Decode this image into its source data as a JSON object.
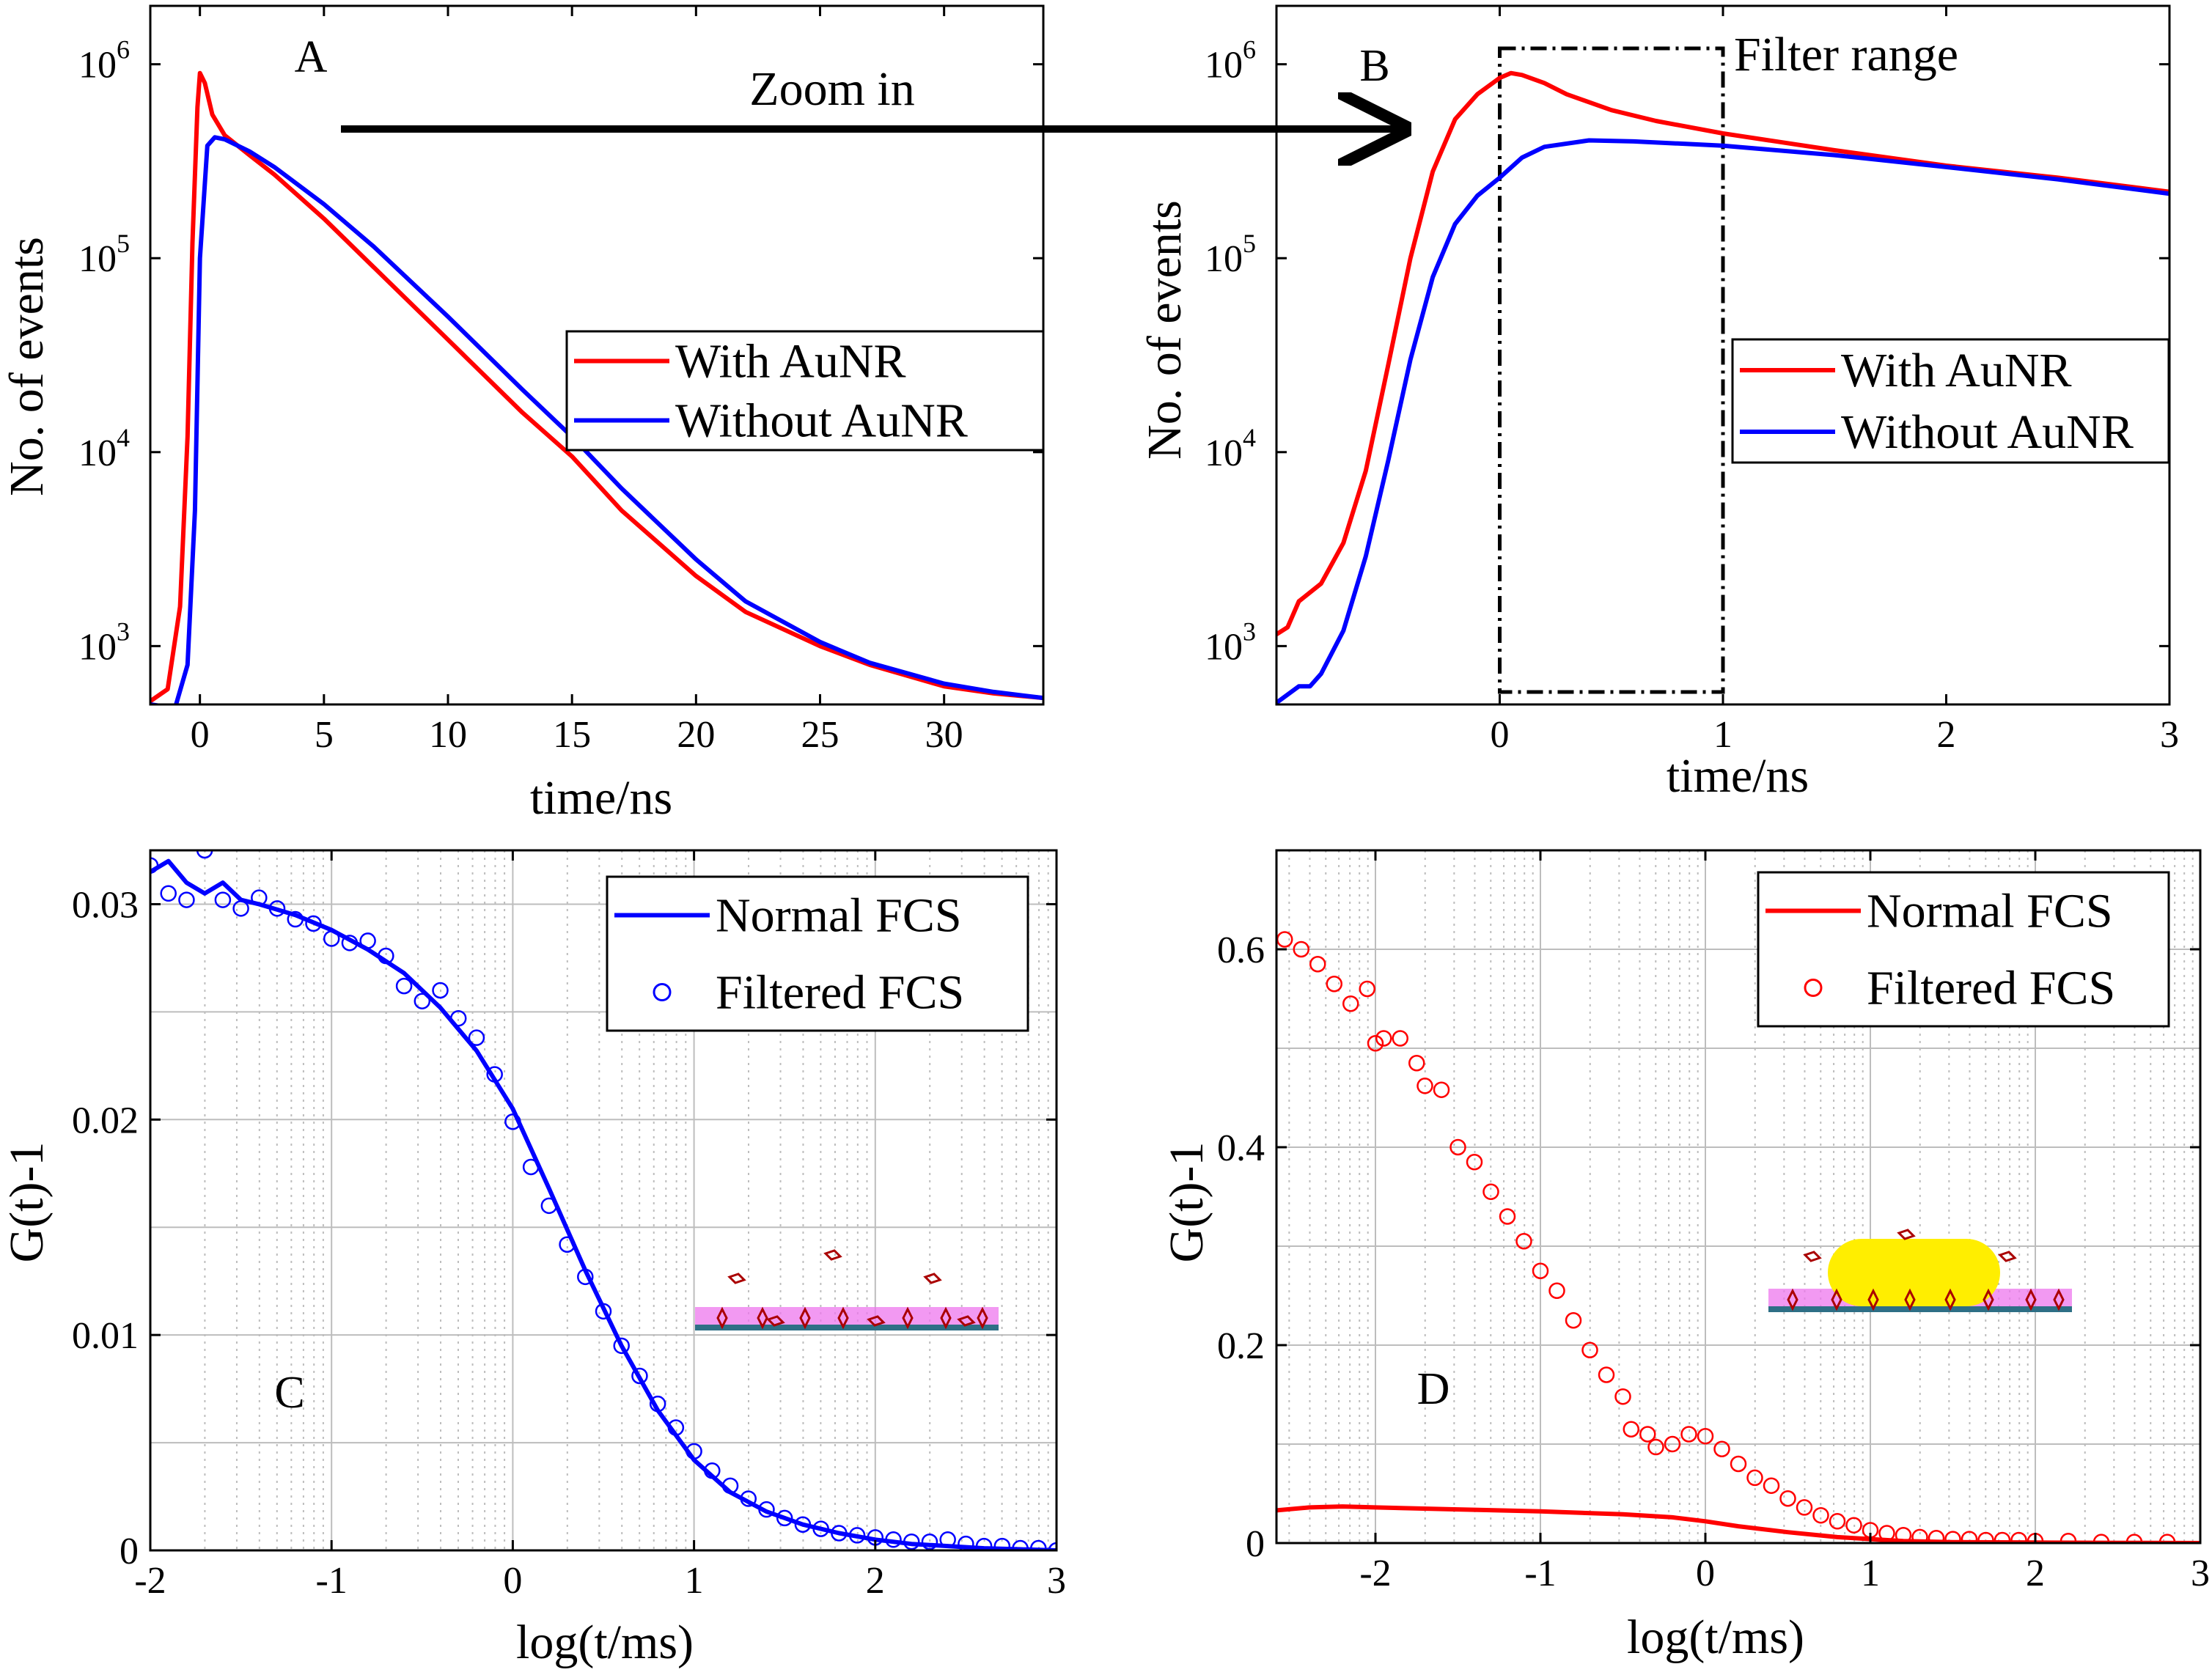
{
  "colors": {
    "red": "#ff0000",
    "blue": "#0000ff",
    "grid": "#bdbdbd",
    "membrane": "#ee77ee",
    "substrate": "#2e6f86",
    "nanorod": "#ffee00",
    "molecule": "#aa0000"
  },
  "annotations": {
    "zoom_in": "Zoom in",
    "filter_range": "Filter range"
  },
  "chart_data": [
    {
      "panel": "A",
      "type": "line",
      "title": "",
      "xlabel": "time/ns",
      "ylabel": "No. of events",
      "xlim": [
        -2,
        34
      ],
      "ylim": [
        500,
        2000000
      ],
      "yscale": "log",
      "xticks": [
        "0",
        "5",
        "10",
        "15",
        "20",
        "25",
        "30"
      ],
      "yticks": [
        "10^3",
        "10^4",
        "10^5",
        "10^6"
      ],
      "grid": false,
      "legend_position": "center-right",
      "series": [
        {
          "name": "With AuNR",
          "color": "#ff0000",
          "x": [
            -2,
            -1.3,
            -0.8,
            -0.5,
            -0.3,
            -0.1,
            0,
            0.2,
            0.5,
            1,
            2,
            3,
            5,
            7,
            10,
            13,
            15,
            17,
            20,
            22,
            25,
            27,
            30,
            32,
            34
          ],
          "y": [
            520,
            600,
            1600,
            12000,
            120000,
            600000,
            900000,
            800000,
            550000,
            430000,
            340000,
            270000,
            160000,
            90000,
            38000,
            16000,
            9500,
            5000,
            2300,
            1500,
            1000,
            800,
            620,
            570,
            540
          ]
        },
        {
          "name": "Without AuNR",
          "color": "#0000ff",
          "x": [
            -2,
            -1,
            -0.5,
            -0.2,
            0,
            0.3,
            0.6,
            1,
            2,
            3,
            5,
            7,
            10,
            13,
            15,
            17,
            20,
            22,
            25,
            27,
            30,
            32,
            34
          ],
          "y": [
            500,
            480,
            800,
            5000,
            100000,
            380000,
            420000,
            410000,
            355000,
            295000,
            190000,
            115000,
            50000,
            21000,
            12000,
            6500,
            2800,
            1700,
            1050,
            820,
            640,
            580,
            540
          ]
        }
      ]
    },
    {
      "panel": "B",
      "type": "line",
      "title": "",
      "xlabel": "time/ns",
      "ylabel": "No. of events",
      "xlim": [
        -1,
        3
      ],
      "ylim": [
        500,
        2000000
      ],
      "yscale": "log",
      "xticks": [
        "0",
        "1",
        "2",
        "3"
      ],
      "yticks": [
        "10^3",
        "10^4",
        "10^5",
        "10^6"
      ],
      "grid": false,
      "legend_position": "center-right",
      "filter_range_ns": [
        0,
        1
      ],
      "series": [
        {
          "name": "With AuNR",
          "color": "#ff0000",
          "x": [
            -1,
            -0.95,
            -0.9,
            -0.8,
            -0.7,
            -0.6,
            -0.5,
            -0.4,
            -0.3,
            -0.2,
            -0.1,
            0,
            0.05,
            0.1,
            0.2,
            0.3,
            0.5,
            0.7,
            1,
            1.5,
            2,
            2.5,
            3
          ],
          "y": [
            1150,
            1250,
            1700,
            2100,
            3400,
            8000,
            28000,
            100000,
            280000,
            520000,
            700000,
            850000,
            900000,
            880000,
            800000,
            700000,
            580000,
            510000,
            440000,
            360000,
            300000,
            260000,
            220000
          ]
        },
        {
          "name": "Without AuNR",
          "color": "#0000ff",
          "x": [
            -1,
            -0.9,
            -0.85,
            -0.8,
            -0.7,
            -0.6,
            -0.5,
            -0.4,
            -0.3,
            -0.2,
            -0.1,
            0,
            0.1,
            0.2,
            0.4,
            0.6,
            0.8,
            1,
            1.5,
            2,
            2.5,
            3
          ],
          "y": [
            510,
            620,
            620,
            720,
            1200,
            2900,
            9000,
            30000,
            80000,
            150000,
            210000,
            260000,
            330000,
            375000,
            405000,
            400000,
            390000,
            380000,
            340000,
            295000,
            255000,
            215000
          ]
        }
      ]
    },
    {
      "panel": "C",
      "type": "line",
      "title": "",
      "xlabel": "log(t/ms)",
      "ylabel": "G(t)-1",
      "xlim": [
        -2,
        3
      ],
      "ylim": [
        0,
        0.0325
      ],
      "xticks": [
        "-2",
        "-1",
        "0",
        "1",
        "2",
        "3"
      ],
      "yticks": [
        "0",
        "0.01",
        "0.02",
        "0.03"
      ],
      "grid": true,
      "legend_position": "top-right",
      "series": [
        {
          "name": "Normal FCS",
          "color": "#0000ff",
          "style": "line",
          "x": [
            -2,
            -1.9,
            -1.8,
            -1.7,
            -1.6,
            -1.5,
            -1.4,
            -1.2,
            -1,
            -0.8,
            -0.6,
            -0.4,
            -0.2,
            0,
            0.2,
            0.4,
            0.6,
            0.8,
            1,
            1.2,
            1.4,
            1.6,
            1.8,
            2,
            2.2,
            2.4,
            2.6,
            2.8,
            3
          ],
          "y": [
            0.0315,
            0.032,
            0.031,
            0.0305,
            0.031,
            0.0302,
            0.03,
            0.0295,
            0.0288,
            0.0279,
            0.0268,
            0.0252,
            0.0232,
            0.0205,
            0.0168,
            0.013,
            0.0095,
            0.0065,
            0.0042,
            0.0027,
            0.0018,
            0.0012,
            0.0008,
            0.0005,
            0.0003,
            0.0002,
            0.0001,
            5e-05,
            0
          ]
        },
        {
          "name": "Filtered FCS",
          "color": "#0000ff",
          "style": "markers",
          "x": [
            -2,
            -1.9,
            -1.8,
            -1.7,
            -1.6,
            -1.5,
            -1.4,
            -1.3,
            -1.2,
            -1.1,
            -1,
            -0.9,
            -0.8,
            -0.7,
            -0.6,
            -0.5,
            -0.4,
            -0.3,
            -0.2,
            -0.1,
            0,
            0.1,
            0.2,
            0.3,
            0.4,
            0.5,
            0.6,
            0.7,
            0.8,
            0.9,
            1,
            1.1,
            1.2,
            1.3,
            1.4,
            1.5,
            1.6,
            1.7,
            1.8,
            1.9,
            2,
            2.1,
            2.2,
            2.3,
            2.4,
            2.5,
            2.6,
            2.7,
            2.8,
            2.9,
            3
          ],
          "y": [
            0.0318,
            0.0305,
            0.0302,
            0.0325,
            0.0302,
            0.0298,
            0.0303,
            0.0298,
            0.0293,
            0.0291,
            0.0284,
            0.0282,
            0.0283,
            0.0276,
            0.0262,
            0.0255,
            0.026,
            0.0247,
            0.0238,
            0.0221,
            0.0199,
            0.0178,
            0.016,
            0.0142,
            0.0127,
            0.0111,
            0.0095,
            0.0081,
            0.0068,
            0.0057,
            0.0046,
            0.0037,
            0.003,
            0.0024,
            0.0019,
            0.0015,
            0.0012,
            0.001,
            0.0008,
            0.0007,
            0.0006,
            0.0005,
            0.0004,
            0.0004,
            0.0005,
            0.0003,
            0.0002,
            0.0002,
            0.0001,
            0.0001,
            0
          ]
        }
      ]
    },
    {
      "panel": "D",
      "type": "line",
      "title": "",
      "xlabel": "log(t/ms)",
      "ylabel": "G(t)-1",
      "xlim": [
        -2.6,
        3
      ],
      "ylim": [
        0,
        0.7
      ],
      "xticks": [
        "-2",
        "-1",
        "0",
        "1",
        "2",
        "3"
      ],
      "yticks": [
        "0",
        "0.2",
        "0.4",
        "0.6"
      ],
      "grid": true,
      "legend_position": "top-right",
      "series": [
        {
          "name": "Normal FCS",
          "color": "#ff0000",
          "style": "line",
          "x": [
            -2.6,
            -2.4,
            -2.2,
            -2,
            -1.5,
            -1,
            -0.5,
            -0.2,
            0,
            0.2,
            0.5,
            0.8,
            1,
            1.2,
            1.5,
            2,
            2.5,
            3
          ],
          "y": [
            0.033,
            0.036,
            0.037,
            0.036,
            0.034,
            0.032,
            0.029,
            0.026,
            0.022,
            0.017,
            0.011,
            0.006,
            0.004,
            0.002,
            0.001,
            0.0005,
            0.0002,
            0
          ]
        },
        {
          "name": "Filtered FCS",
          "color": "#ff0000",
          "style": "markers",
          "x": [
            -2.55,
            -2.45,
            -2.35,
            -2.25,
            -2.15,
            -2.05,
            -2.0,
            -1.95,
            -1.85,
            -1.75,
            -1.7,
            -1.6,
            -1.5,
            -1.4,
            -1.3,
            -1.2,
            -1.1,
            -1.0,
            -0.9,
            -0.8,
            -0.7,
            -0.6,
            -0.5,
            -0.45,
            -0.35,
            -0.3,
            -0.2,
            -0.1,
            0.0,
            0.1,
            0.2,
            0.3,
            0.4,
            0.5,
            0.6,
            0.7,
            0.8,
            0.9,
            1.0,
            1.1,
            1.2,
            1.3,
            1.4,
            1.5,
            1.6,
            1.7,
            1.8,
            1.9,
            2.0,
            2.2,
            2.4,
            2.6,
            2.8
          ],
          "y": [
            0.61,
            0.6,
            0.585,
            0.565,
            0.545,
            0.56,
            0.505,
            0.51,
            0.51,
            0.485,
            0.462,
            0.458,
            0.4,
            0.385,
            0.355,
            0.33,
            0.305,
            0.275,
            0.255,
            0.225,
            0.195,
            0.17,
            0.148,
            0.115,
            0.11,
            0.097,
            0.1,
            0.11,
            0.108,
            0.095,
            0.08,
            0.066,
            0.058,
            0.045,
            0.036,
            0.028,
            0.022,
            0.018,
            0.013,
            0.01,
            0.008,
            0.006,
            0.005,
            0.004,
            0.004,
            0.003,
            0.003,
            0.003,
            0.002,
            0.002,
            0.001,
            0.001,
            0.001
          ]
        }
      ]
    }
  ],
  "panel_letters": [
    "A",
    "B",
    "C",
    "D"
  ]
}
